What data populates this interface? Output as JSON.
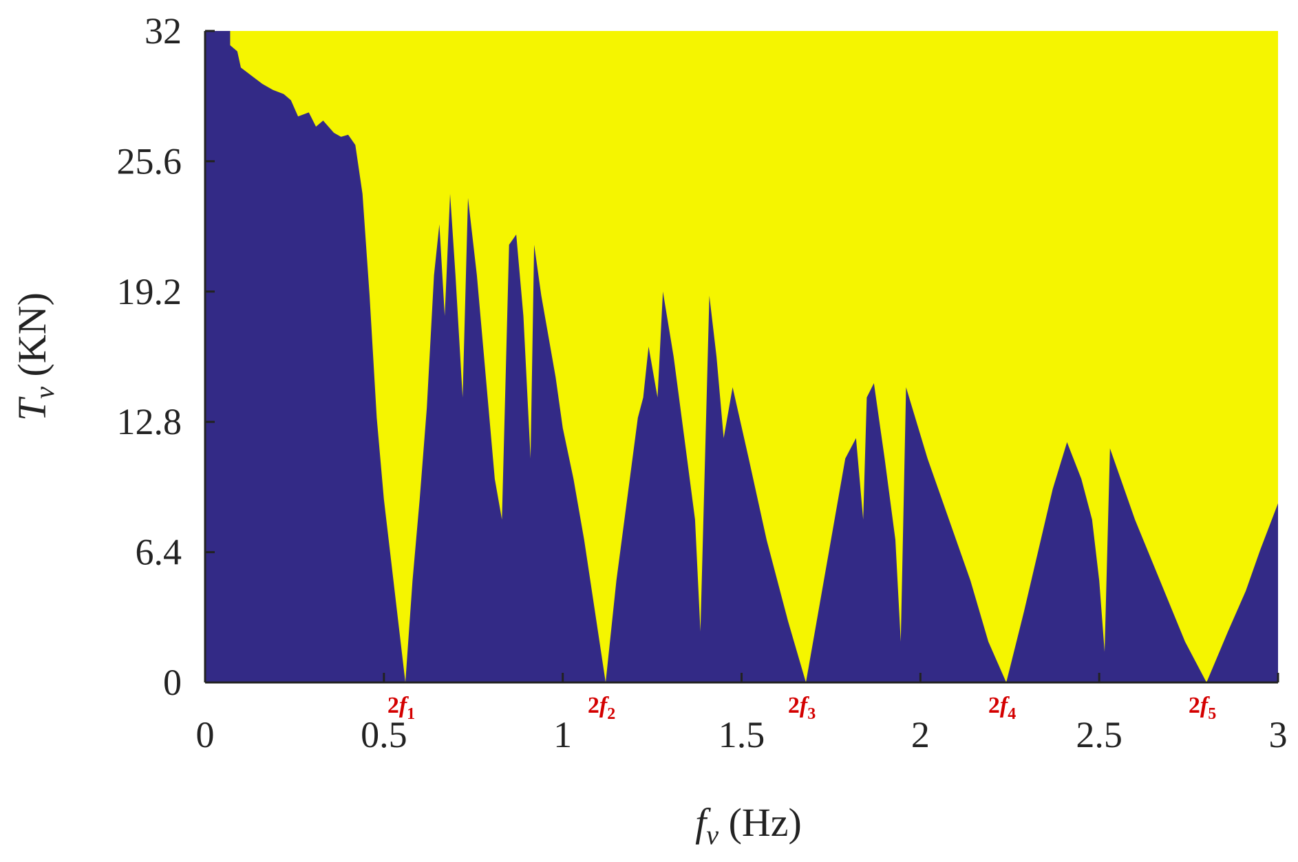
{
  "chart_data": {
    "type": "area",
    "xlabel": {
      "symbol": "f",
      "subscript": "v",
      "unit": " (Hz)"
    },
    "ylabel": {
      "symbol": "T",
      "subscript": "v",
      "unit": " (KN)"
    },
    "xlim": [
      0,
      3
    ],
    "ylim": [
      0,
      32
    ],
    "xticks": [
      0,
      0.5,
      1,
      1.5,
      2,
      2.5,
      3
    ],
    "xtick_labels": [
      "0",
      "0.5",
      "1",
      "1.5",
      "2",
      "2.5",
      "3"
    ],
    "yticks": [
      0,
      6.4,
      12.8,
      19.2,
      25.6,
      32
    ],
    "ytick_labels": [
      "0",
      "6.4",
      "12.8",
      "19.2",
      "25.6",
      "32"
    ],
    "grid": false,
    "colors": {
      "unstable": "#332a86",
      "stable": "#f5f500"
    },
    "resonance_markers": [
      {
        "x": 0.56,
        "label": "2f",
        "sub": "1"
      },
      {
        "x": 1.12,
        "label": "2f",
        "sub": "2"
      },
      {
        "x": 1.68,
        "label": "2f",
        "sub": "3"
      },
      {
        "x": 2.24,
        "label": "2f",
        "sub": "4"
      },
      {
        "x": 2.8,
        "label": "2f",
        "sub": "5"
      }
    ],
    "series": [
      {
        "boundary": [
          [
            0,
            32
          ],
          [
            0.07,
            32
          ],
          [
            0.07,
            31.3
          ],
          [
            0.09,
            31.0
          ],
          [
            0.1,
            30.2
          ],
          [
            0.13,
            29.8
          ],
          [
            0.16,
            29.4
          ],
          [
            0.19,
            29.1
          ],
          [
            0.22,
            28.9
          ],
          [
            0.24,
            28.6
          ],
          [
            0.26,
            27.8
          ],
          [
            0.29,
            28.0
          ],
          [
            0.31,
            27.3
          ],
          [
            0.33,
            27.6
          ],
          [
            0.36,
            27.0
          ],
          [
            0.38,
            26.8
          ],
          [
            0.4,
            26.9
          ],
          [
            0.42,
            26.4
          ],
          [
            0.44,
            24.0
          ],
          [
            0.46,
            19.0
          ],
          [
            0.48,
            13.0
          ],
          [
            0.5,
            9.0
          ],
          [
            0.52,
            6.0
          ],
          [
            0.54,
            3.0
          ],
          [
            0.56,
            0
          ],
          [
            0.58,
            5.0
          ],
          [
            0.6,
            9.0
          ],
          [
            0.62,
            13.5
          ],
          [
            0.64,
            20.0
          ],
          [
            0.655,
            22.5
          ],
          [
            0.67,
            18.0
          ],
          [
            0.685,
            24.0
          ],
          [
            0.7,
            20.0
          ],
          [
            0.72,
            14.0
          ],
          [
            0.735,
            23.8
          ],
          [
            0.76,
            20.0
          ],
          [
            0.79,
            14.0
          ],
          [
            0.81,
            10.0
          ],
          [
            0.83,
            8.0
          ],
          [
            0.85,
            21.5
          ],
          [
            0.87,
            22.0
          ],
          [
            0.89,
            18.0
          ],
          [
            0.91,
            11.0
          ],
          [
            0.92,
            21.5
          ],
          [
            0.94,
            19.0
          ],
          [
            0.96,
            17.0
          ],
          [
            0.98,
            15.0
          ],
          [
            1.0,
            12.5
          ],
          [
            1.03,
            10.0
          ],
          [
            1.06,
            7.0
          ],
          [
            1.09,
            3.5
          ],
          [
            1.12,
            0
          ],
          [
            1.15,
            5.0
          ],
          [
            1.18,
            9.0
          ],
          [
            1.21,
            13.0
          ],
          [
            1.225,
            14.0
          ],
          [
            1.24,
            16.5
          ],
          [
            1.265,
            14.0
          ],
          [
            1.28,
            19.2
          ],
          [
            1.31,
            16.0
          ],
          [
            1.34,
            12.0
          ],
          [
            1.37,
            8.0
          ],
          [
            1.385,
            2.5
          ],
          [
            1.41,
            19.0
          ],
          [
            1.43,
            16.0
          ],
          [
            1.45,
            12.0
          ],
          [
            1.475,
            14.5
          ],
          [
            1.52,
            11.0
          ],
          [
            1.57,
            7.0
          ],
          [
            1.63,
            3.0
          ],
          [
            1.68,
            0
          ],
          [
            1.72,
            4.0
          ],
          [
            1.76,
            8.0
          ],
          [
            1.79,
            11.0
          ],
          [
            1.82,
            12.0
          ],
          [
            1.84,
            8.0
          ],
          [
            1.85,
            14.0
          ],
          [
            1.87,
            14.7
          ],
          [
            1.9,
            11.0
          ],
          [
            1.93,
            7.0
          ],
          [
            1.945,
            2.0
          ],
          [
            1.96,
            14.5
          ],
          [
            2.02,
            11.0
          ],
          [
            2.08,
            8.0
          ],
          [
            2.14,
            5.0
          ],
          [
            2.19,
            2.0
          ],
          [
            2.24,
            0
          ],
          [
            2.29,
            3.5
          ],
          [
            2.33,
            6.5
          ],
          [
            2.37,
            9.5
          ],
          [
            2.41,
            11.8
          ],
          [
            2.45,
            10.0
          ],
          [
            2.48,
            8.0
          ],
          [
            2.5,
            5.0
          ],
          [
            2.515,
            1.5
          ],
          [
            2.53,
            11.5
          ],
          [
            2.6,
            8.0
          ],
          [
            2.67,
            5.0
          ],
          [
            2.74,
            2.0
          ],
          [
            2.8,
            0
          ],
          [
            2.86,
            2.5
          ],
          [
            2.91,
            4.5
          ],
          [
            2.95,
            6.5
          ],
          [
            3.0,
            8.8
          ],
          [
            3.0,
            0
          ],
          [
            0,
            0
          ]
        ]
      }
    ]
  }
}
